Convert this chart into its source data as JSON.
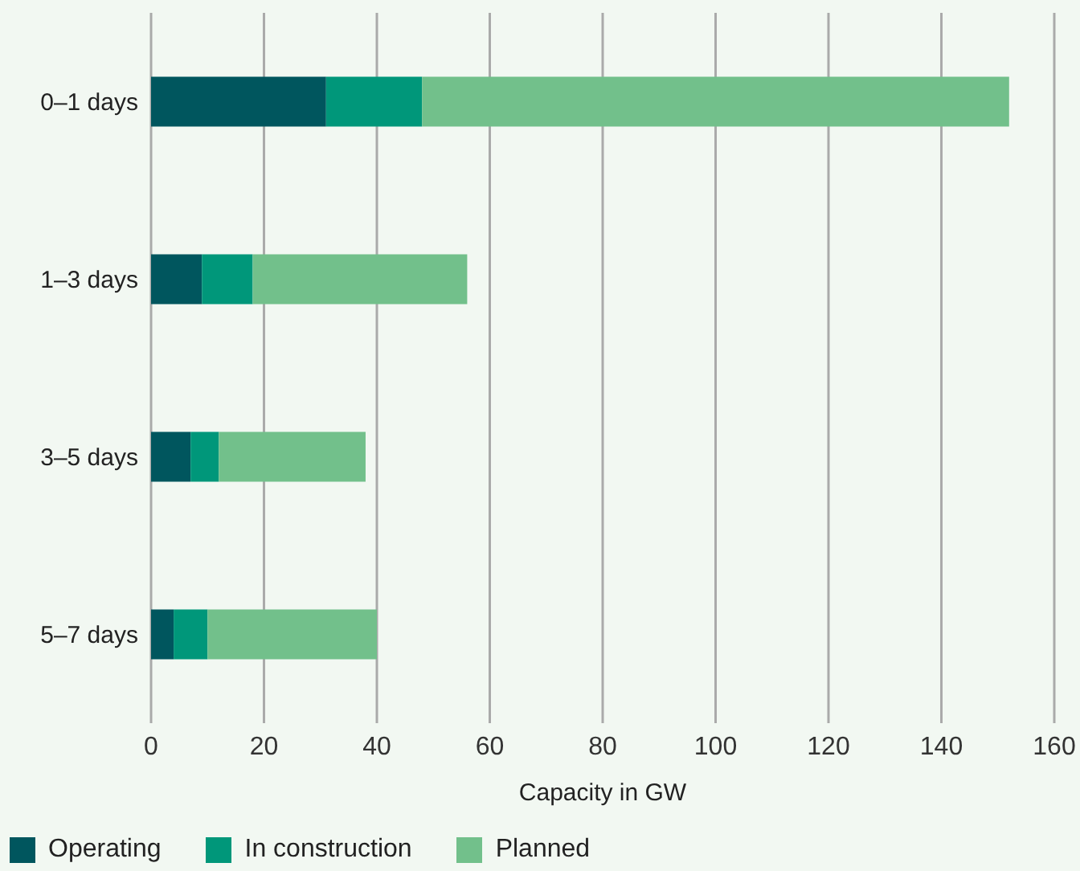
{
  "chart_data": {
    "type": "bar",
    "orientation": "horizontal",
    "stacked": true,
    "categories": [
      "0–1 days",
      "1–3 days",
      "3–5 days",
      "5–7 days"
    ],
    "series": [
      {
        "name": "Operating",
        "color": "#00565e",
        "values": [
          31,
          9,
          7,
          4
        ]
      },
      {
        "name": "In construction",
        "color": "#00977a",
        "values": [
          17,
          9,
          5,
          6
        ]
      },
      {
        "name": "Planned",
        "color": "#72c08b",
        "values": [
          104,
          38,
          26,
          30
        ]
      }
    ],
    "xlabel": "Capacity in GW",
    "xlim": [
      0,
      160
    ],
    "xticks": [
      0,
      20,
      40,
      60,
      80,
      100,
      120,
      140,
      160
    ],
    "grid": "x",
    "legend": "bottom left"
  }
}
